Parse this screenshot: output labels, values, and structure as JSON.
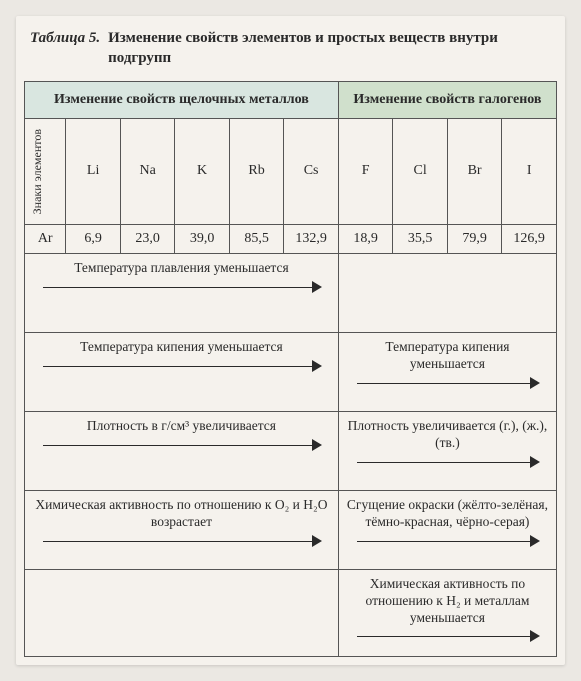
{
  "title": {
    "label": "Таблица 5.",
    "text": "Изменение свойств элементов и простых веществ внутри подгрупп"
  },
  "headers": {
    "alkali": "Изменение свойств щелочных металлов",
    "halogen": "Изменение свойств галогенов",
    "signs": "Знаки элементов",
    "ar": "Ar"
  },
  "elements": {
    "alkali": [
      "Li",
      "Na",
      "K",
      "Rb",
      "Cs"
    ],
    "halogen": [
      "F",
      "Cl",
      "Br",
      "I"
    ]
  },
  "ar": {
    "alkali": [
      "6,9",
      "23,0",
      "39,0",
      "85,5",
      "132,9"
    ],
    "halogen": [
      "18,9",
      "35,5",
      "79,9",
      "126,9"
    ]
  },
  "rows": [
    {
      "alkali": "Температура плавления уменьшается",
      "halogen": ""
    },
    {
      "alkali": "Температура кипения уменьшается",
      "halogen": "Температура кипения уменьшается"
    },
    {
      "alkali": "Плотность в г/см³ увеличивается",
      "halogen": "Плотность увеличивается (г.), (ж.), (тв.)"
    },
    {
      "alkali": "Химическая активность по отношению к O₂ и H₂O возрастает",
      "halogen": "Сгущение окраски (жёлто-зелёная, тёмно-красная, чёрно-серая)"
    },
    {
      "alkali": "",
      "halogen": "Химическая активность по отношению к H₂ и металлам уменьшается"
    }
  ]
}
